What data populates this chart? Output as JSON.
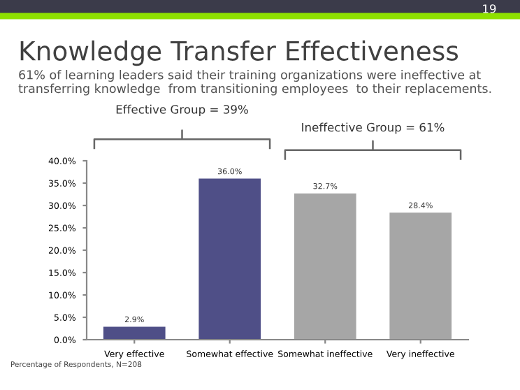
{
  "chart_data": {
    "type": "bar",
    "title": "Knowledge Transfer Effectiveness",
    "subtitle": "61% of learning leaders said their training organizations were ineffective at transferring knowledge  from transitioning employees  to their replacements.",
    "categories": [
      "Very effective",
      "Somewhat effective",
      "Somewhat ineffective",
      "Very ineffective"
    ],
    "values": [
      2.9,
      36.0,
      32.7,
      28.4
    ],
    "colors": [
      "#4f4f87",
      "#4f4f87",
      "#a6a6a6",
      "#a6a6a6"
    ],
    "value_labels": [
      "2.9%",
      "36.0%",
      "32.7%",
      "28.4%"
    ],
    "ylim": [
      0,
      40
    ],
    "yticks": [
      {
        "value": 0,
        "label": "0.0%"
      },
      {
        "value": 5,
        "label": "5.0%"
      },
      {
        "value": 10,
        "label": "10.0%"
      },
      {
        "value": 15,
        "label": "15.0%"
      },
      {
        "value": 20,
        "label": "20.0%"
      },
      {
        "value": 25,
        "label": "25.0%"
      },
      {
        "value": 30,
        "label": "30.0%"
      },
      {
        "value": 35,
        "label": "35.0%"
      },
      {
        "value": 40,
        "label": "40.0%"
      }
    ],
    "grid": false,
    "annotations": [
      "Effective Group = 39%",
      "Ineffective Group = 61%",
      "Percentage of Respondents, N=208",
      "19"
    ]
  }
}
